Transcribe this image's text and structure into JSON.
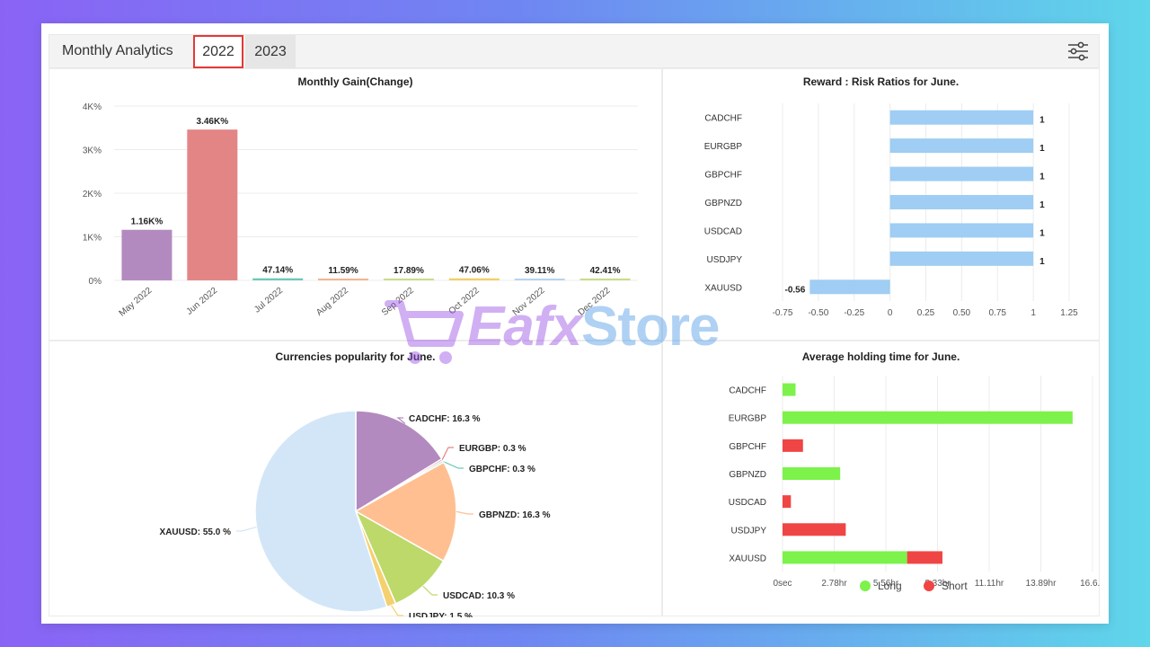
{
  "header": {
    "title": "Monthly Analytics",
    "tabs": [
      {
        "label": "2022",
        "active": true
      },
      {
        "label": "2023",
        "active": false
      }
    ],
    "settings_icon": "sliders-icon"
  },
  "watermark": {
    "brand": "Eafx",
    "suffix": "Store"
  },
  "colors": {
    "accent_red": "#e53935",
    "long": "#7cf24a",
    "short": "#f04545",
    "ratio_bar": "#9fcdf3"
  },
  "panels": {
    "monthly_gain": {
      "title": "Monthly Gain(Change)"
    },
    "reward_risk": {
      "title": "Reward : Risk Ratios for June."
    },
    "popularity": {
      "title": "Currencies popularity for June."
    },
    "holding": {
      "title": "Average holding time for June.",
      "legend": [
        {
          "label": "Long",
          "color": "#7cf24a"
        },
        {
          "label": "Short",
          "color": "#f04545"
        }
      ]
    }
  },
  "chart_data": [
    {
      "type": "bar",
      "title": "Monthly Gain(Change)",
      "categories": [
        "May 2022",
        "Jun 2022",
        "Jul 2022",
        "Aug 2022",
        "Sep 2022",
        "Oct 2022",
        "Nov 2022",
        "Dec 2022"
      ],
      "values": [
        1160,
        3460,
        47.14,
        11.59,
        17.89,
        47.06,
        39.11,
        42.41
      ],
      "data_labels": [
        "1.16K%",
        "3.46K%",
        "47.14%",
        "11.59%",
        "17.89%",
        "47.06%",
        "39.11%",
        "42.41%"
      ],
      "colors": [
        "#b38abf",
        "#e38585",
        "#6dc9b8",
        "#f2b58f",
        "#c9dc8a",
        "#f2cf6b",
        "#b7d3f2",
        "#c9dc8a"
      ],
      "yticks": [
        "0%",
        "1K%",
        "2K%",
        "3K%",
        "4K%"
      ],
      "ylim": [
        0,
        4000
      ],
      "grid": true
    },
    {
      "type": "bar",
      "orientation": "horizontal",
      "title": "Reward : Risk Ratios for June.",
      "categories": [
        "CADCHF",
        "EURGBP",
        "GBPCHF",
        "GBPNZD",
        "USDCAD",
        "USDJPY",
        "XAUUSD"
      ],
      "values": [
        1,
        1,
        1,
        1,
        1,
        1,
        -0.56
      ],
      "data_labels": [
        "1",
        "1",
        "1",
        "1",
        "1",
        "1",
        "-0.56"
      ],
      "xticks": [
        "-0.75",
        "-0.50",
        "-0.25",
        "0",
        "0.25",
        "0.50",
        "0.75",
        "1",
        "1.25"
      ],
      "xlim": [
        -0.75,
        1.25
      ],
      "grid": true
    },
    {
      "type": "pie",
      "title": "Currencies popularity for June.",
      "labels": [
        "CADCHF",
        "EURGBP",
        "GBPCHF",
        "GBPNZD",
        "USDCAD",
        "USDJPY",
        "XAUUSD"
      ],
      "values": [
        16.3,
        0.3,
        0.3,
        16.3,
        10.3,
        1.5,
        55.0
      ],
      "data_labels": [
        "CADCHF: 16.3 %",
        "EURGBP: 0.3 %",
        "GBPCHF: 0.3 %",
        "GBPNZD: 16.3 %",
        "USDCAD: 10.3 %",
        "USDJPY: 1.5 %",
        "XAUUSD: 55.0 %"
      ],
      "colors": [
        "#b38abf",
        "#e38585",
        "#6dc9b8",
        "#ffbf91",
        "#bcd96a",
        "#f4d06f",
        "#d2e6f8"
      ]
    },
    {
      "type": "bar",
      "orientation": "horizontal",
      "stacked": true,
      "title": "Average holding time for June.",
      "categories": [
        "CADCHF",
        "EURGBP",
        "GBPCHF",
        "GBPNZD",
        "USDCAD",
        "USDJPY",
        "XAUUSD"
      ],
      "series": [
        {
          "name": "Long",
          "values_hours": [
            0.7,
            15.6,
            0,
            3.1,
            0,
            0,
            6.7
          ]
        },
        {
          "name": "Short",
          "values_hours": [
            0,
            0,
            1.1,
            0,
            0.45,
            3.4,
            1.9
          ]
        }
      ],
      "xticks": [
        "0sec",
        "2.78hr",
        "5.56hr",
        "8.33hr",
        "11.11hr",
        "13.89hr",
        "16.6..."
      ],
      "xlim": [
        0,
        16.67
      ],
      "grid": true,
      "legend": "bottom"
    }
  ]
}
